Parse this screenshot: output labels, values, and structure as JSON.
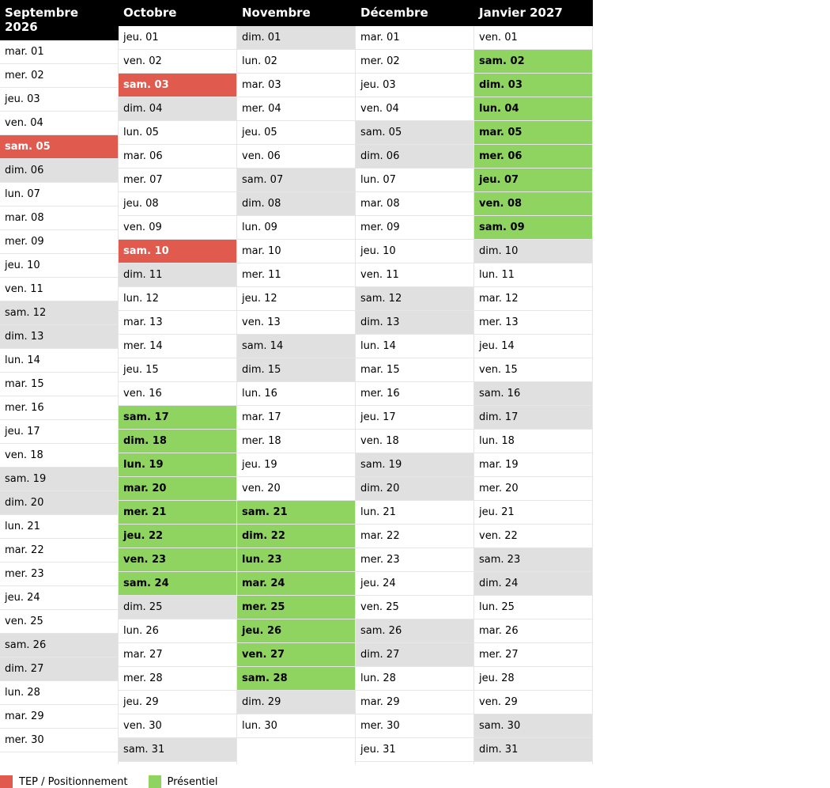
{
  "colors": {
    "tep": "#e05a4e",
    "presentiel": "#8fd460",
    "weekend": "#e0e0e0",
    "header": "#000000"
  },
  "legend": [
    {
      "label": "TEP / Positionnement",
      "type": "red"
    },
    {
      "label": "Présentiel",
      "type": "green"
    }
  ],
  "months": [
    {
      "title": "Septembre 2026",
      "days": [
        {
          "label": "mar. 01",
          "type": "normal"
        },
        {
          "label": "mer. 02",
          "type": "normal"
        },
        {
          "label": "jeu. 03",
          "type": "normal"
        },
        {
          "label": "ven. 04",
          "type": "normal"
        },
        {
          "label": "sam. 05",
          "type": "red"
        },
        {
          "label": "dim. 06",
          "type": "weekend"
        },
        {
          "label": "lun. 07",
          "type": "normal"
        },
        {
          "label": "mar. 08",
          "type": "normal"
        },
        {
          "label": "mer. 09",
          "type": "normal"
        },
        {
          "label": "jeu. 10",
          "type": "normal"
        },
        {
          "label": "ven. 11",
          "type": "normal"
        },
        {
          "label": "sam. 12",
          "type": "weekend"
        },
        {
          "label": "dim. 13",
          "type": "weekend"
        },
        {
          "label": "lun. 14",
          "type": "normal"
        },
        {
          "label": "mar. 15",
          "type": "normal"
        },
        {
          "label": "mer. 16",
          "type": "normal"
        },
        {
          "label": "jeu. 17",
          "type": "normal"
        },
        {
          "label": "ven. 18",
          "type": "normal"
        },
        {
          "label": "sam. 19",
          "type": "weekend"
        },
        {
          "label": "dim. 20",
          "type": "weekend"
        },
        {
          "label": "lun. 21",
          "type": "normal"
        },
        {
          "label": "mar. 22",
          "type": "normal"
        },
        {
          "label": "mer. 23",
          "type": "normal"
        },
        {
          "label": "jeu. 24",
          "type": "normal"
        },
        {
          "label": "ven. 25",
          "type": "normal"
        },
        {
          "label": "sam. 26",
          "type": "weekend"
        },
        {
          "label": "dim. 27",
          "type": "weekend"
        },
        {
          "label": "lun. 28",
          "type": "normal"
        },
        {
          "label": "mar. 29",
          "type": "normal"
        },
        {
          "label": "mer. 30",
          "type": "normal"
        }
      ]
    },
    {
      "title": "Octobre",
      "days": [
        {
          "label": "jeu. 01",
          "type": "normal"
        },
        {
          "label": "ven. 02",
          "type": "normal"
        },
        {
          "label": "sam. 03",
          "type": "red"
        },
        {
          "label": "dim. 04",
          "type": "weekend"
        },
        {
          "label": "lun. 05",
          "type": "normal"
        },
        {
          "label": "mar. 06",
          "type": "normal"
        },
        {
          "label": "mer. 07",
          "type": "normal"
        },
        {
          "label": "jeu. 08",
          "type": "normal"
        },
        {
          "label": "ven. 09",
          "type": "normal"
        },
        {
          "label": "sam. 10",
          "type": "red"
        },
        {
          "label": "dim. 11",
          "type": "weekend"
        },
        {
          "label": "lun. 12",
          "type": "normal"
        },
        {
          "label": "mar. 13",
          "type": "normal"
        },
        {
          "label": "mer. 14",
          "type": "normal"
        },
        {
          "label": "jeu. 15",
          "type": "normal"
        },
        {
          "label": "ven. 16",
          "type": "normal"
        },
        {
          "label": "sam. 17",
          "type": "green"
        },
        {
          "label": "dim. 18",
          "type": "green"
        },
        {
          "label": "lun. 19",
          "type": "green"
        },
        {
          "label": "mar. 20",
          "type": "green"
        },
        {
          "label": "mer. 21",
          "type": "green"
        },
        {
          "label": "jeu. 22",
          "type": "green"
        },
        {
          "label": "ven. 23",
          "type": "green"
        },
        {
          "label": "sam. 24",
          "type": "green"
        },
        {
          "label": "dim. 25",
          "type": "weekend"
        },
        {
          "label": "lun. 26",
          "type": "normal"
        },
        {
          "label": "mar. 27",
          "type": "normal"
        },
        {
          "label": "mer. 28",
          "type": "normal"
        },
        {
          "label": "jeu. 29",
          "type": "normal"
        },
        {
          "label": "ven. 30",
          "type": "normal"
        },
        {
          "label": "sam. 31",
          "type": "weekend"
        }
      ]
    },
    {
      "title": "Novembre",
      "days": [
        {
          "label": "dim. 01",
          "type": "weekend"
        },
        {
          "label": "lun. 02",
          "type": "normal"
        },
        {
          "label": "mar. 03",
          "type": "normal"
        },
        {
          "label": "mer. 04",
          "type": "normal"
        },
        {
          "label": "jeu. 05",
          "type": "normal"
        },
        {
          "label": "ven. 06",
          "type": "normal"
        },
        {
          "label": "sam. 07",
          "type": "weekend"
        },
        {
          "label": "dim. 08",
          "type": "weekend"
        },
        {
          "label": "lun. 09",
          "type": "normal"
        },
        {
          "label": "mar. 10",
          "type": "normal"
        },
        {
          "label": "mer. 11",
          "type": "normal"
        },
        {
          "label": "jeu. 12",
          "type": "normal"
        },
        {
          "label": "ven. 13",
          "type": "normal"
        },
        {
          "label": "sam. 14",
          "type": "weekend"
        },
        {
          "label": "dim. 15",
          "type": "weekend"
        },
        {
          "label": "lun. 16",
          "type": "normal"
        },
        {
          "label": "mar. 17",
          "type": "normal"
        },
        {
          "label": "mer. 18",
          "type": "normal"
        },
        {
          "label": "jeu. 19",
          "type": "normal"
        },
        {
          "label": "ven. 20",
          "type": "normal"
        },
        {
          "label": "sam. 21",
          "type": "green"
        },
        {
          "label": "dim. 22",
          "type": "green"
        },
        {
          "label": "lun. 23",
          "type": "green"
        },
        {
          "label": "mar. 24",
          "type": "green"
        },
        {
          "label": "mer. 25",
          "type": "green"
        },
        {
          "label": "jeu. 26",
          "type": "green"
        },
        {
          "label": "ven. 27",
          "type": "green"
        },
        {
          "label": "sam. 28",
          "type": "green"
        },
        {
          "label": "dim. 29",
          "type": "weekend"
        },
        {
          "label": "lun. 30",
          "type": "normal"
        }
      ]
    },
    {
      "title": "Décembre",
      "days": [
        {
          "label": "mar. 01",
          "type": "normal"
        },
        {
          "label": "mer. 02",
          "type": "normal"
        },
        {
          "label": "jeu. 03",
          "type": "normal"
        },
        {
          "label": "ven. 04",
          "type": "normal"
        },
        {
          "label": "sam. 05",
          "type": "weekend"
        },
        {
          "label": "dim. 06",
          "type": "weekend"
        },
        {
          "label": "lun. 07",
          "type": "normal"
        },
        {
          "label": "mar. 08",
          "type": "normal"
        },
        {
          "label": "mer. 09",
          "type": "normal"
        },
        {
          "label": "jeu. 10",
          "type": "normal"
        },
        {
          "label": "ven. 11",
          "type": "normal"
        },
        {
          "label": "sam. 12",
          "type": "weekend"
        },
        {
          "label": "dim. 13",
          "type": "weekend"
        },
        {
          "label": "lun. 14",
          "type": "normal"
        },
        {
          "label": "mar. 15",
          "type": "normal"
        },
        {
          "label": "mer. 16",
          "type": "normal"
        },
        {
          "label": "jeu. 17",
          "type": "normal"
        },
        {
          "label": "ven. 18",
          "type": "normal"
        },
        {
          "label": "sam. 19",
          "type": "weekend"
        },
        {
          "label": "dim. 20",
          "type": "weekend"
        },
        {
          "label": "lun. 21",
          "type": "normal"
        },
        {
          "label": "mar. 22",
          "type": "normal"
        },
        {
          "label": "mer. 23",
          "type": "normal"
        },
        {
          "label": "jeu. 24",
          "type": "normal"
        },
        {
          "label": "ven. 25",
          "type": "normal"
        },
        {
          "label": "sam. 26",
          "type": "weekend"
        },
        {
          "label": "dim. 27",
          "type": "weekend"
        },
        {
          "label": "lun. 28",
          "type": "normal"
        },
        {
          "label": "mar. 29",
          "type": "normal"
        },
        {
          "label": "mer. 30",
          "type": "normal"
        },
        {
          "label": "jeu. 31",
          "type": "normal"
        }
      ]
    },
    {
      "title": "Janvier 2027",
      "days": [
        {
          "label": "ven. 01",
          "type": "normal"
        },
        {
          "label": "sam. 02",
          "type": "green"
        },
        {
          "label": "dim. 03",
          "type": "green"
        },
        {
          "label": "lun. 04",
          "type": "green"
        },
        {
          "label": "mar. 05",
          "type": "green"
        },
        {
          "label": "mer. 06",
          "type": "green"
        },
        {
          "label": "jeu. 07",
          "type": "green"
        },
        {
          "label": "ven. 08",
          "type": "green"
        },
        {
          "label": "sam. 09",
          "type": "green"
        },
        {
          "label": "dim. 10",
          "type": "weekend"
        },
        {
          "label": "lun. 11",
          "type": "normal"
        },
        {
          "label": "mar. 12",
          "type": "normal"
        },
        {
          "label": "mer. 13",
          "type": "normal"
        },
        {
          "label": "jeu. 14",
          "type": "normal"
        },
        {
          "label": "ven. 15",
          "type": "normal"
        },
        {
          "label": "sam. 16",
          "type": "weekend"
        },
        {
          "label": "dim. 17",
          "type": "weekend"
        },
        {
          "label": "lun. 18",
          "type": "normal"
        },
        {
          "label": "mar. 19",
          "type": "normal"
        },
        {
          "label": "mer. 20",
          "type": "normal"
        },
        {
          "label": "jeu. 21",
          "type": "normal"
        },
        {
          "label": "ven. 22",
          "type": "normal"
        },
        {
          "label": "sam. 23",
          "type": "weekend"
        },
        {
          "label": "dim. 24",
          "type": "weekend"
        },
        {
          "label": "lun. 25",
          "type": "normal"
        },
        {
          "label": "mar. 26",
          "type": "normal"
        },
        {
          "label": "mer. 27",
          "type": "normal"
        },
        {
          "label": "jeu. 28",
          "type": "normal"
        },
        {
          "label": "ven. 29",
          "type": "normal"
        },
        {
          "label": "sam. 30",
          "type": "weekend"
        },
        {
          "label": "dim. 31",
          "type": "weekend"
        }
      ]
    }
  ]
}
